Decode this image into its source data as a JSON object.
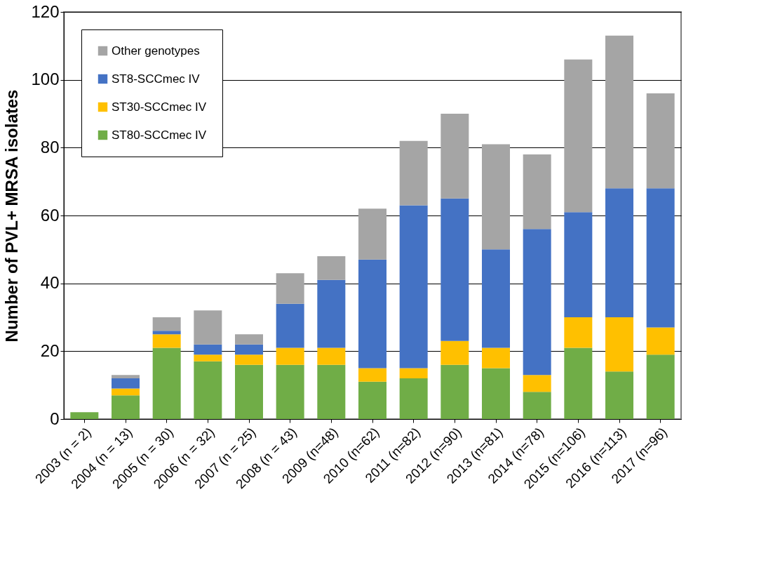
{
  "chart_data": {
    "type": "bar",
    "stacked": true,
    "ylabel": "Number of PVL+ MRSA isolates",
    "categories": [
      "2003 (n = 2)",
      "2004 (n = 13)",
      "2005 (n = 30)",
      "2006 (n = 32)",
      "2007 (n = 25)",
      "2008 (n = 43)",
      "2009 (n=48)",
      "2010 (n=62)",
      "2011 (n=82)",
      "2012 (n=90)",
      "2013 (n=81)",
      "2014 (n=78)",
      "2015 (n=106)",
      "2016 (n=113)",
      "2017 (n=96)"
    ],
    "series": [
      {
        "name": "ST80-SCCmec IV",
        "color": "#70ad47",
        "values": [
          2,
          7,
          21,
          17,
          16,
          16,
          16,
          11,
          12,
          16,
          15,
          8,
          21,
          14,
          19
        ]
      },
      {
        "name": "ST30-SCCmec IV",
        "color": "#ffc000",
        "values": [
          0,
          2,
          4,
          2,
          3,
          5,
          5,
          4,
          3,
          7,
          6,
          5,
          9,
          16,
          8
        ]
      },
      {
        "name": "ST8-SCCmec IV",
        "color": "#4472c4",
        "values": [
          0,
          3,
          1,
          3,
          3,
          13,
          20,
          32,
          48,
          42,
          29,
          43,
          31,
          38,
          41
        ]
      },
      {
        "name": "Other genotypes",
        "color": "#a5a5a5",
        "values": [
          0,
          1,
          4,
          10,
          3,
          9,
          7,
          15,
          19,
          25,
          31,
          22,
          45,
          45,
          28
        ]
      }
    ],
    "ylim": [
      0,
      120
    ],
    "yticks": [
      0,
      20,
      40,
      60,
      80,
      100,
      120
    ],
    "grid": "y",
    "legend": "top left"
  }
}
